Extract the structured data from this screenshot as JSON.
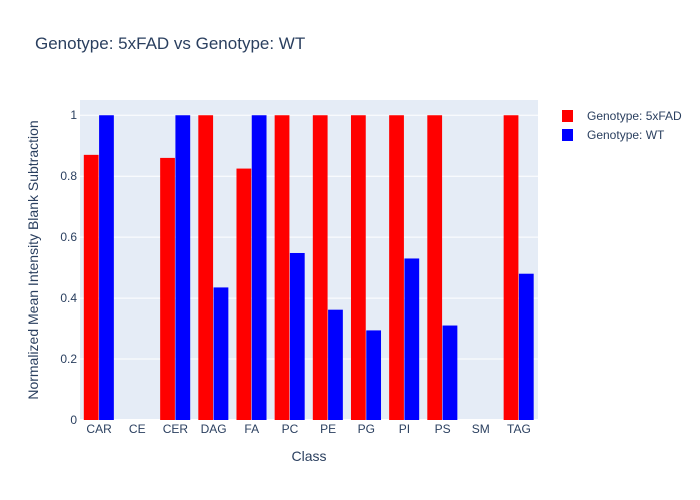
{
  "chart_data": {
    "type": "bar",
    "title": "Genotype: 5xFAD vs Genotype: WT",
    "xlabel": "Class",
    "ylabel": "Normalized Mean Intensity Blank Subtraction",
    "categories": [
      "CAR",
      "CE",
      "CER",
      "DAG",
      "FA",
      "PC",
      "PE",
      "PG",
      "PI",
      "PS",
      "SM",
      "TAG"
    ],
    "series": [
      {
        "name": "Genotype: 5xFAD",
        "color": "#ff0000",
        "values": [
          0.87,
          0,
          0.86,
          1,
          0.825,
          1,
          1,
          1,
          1,
          1,
          0,
          1
        ]
      },
      {
        "name": "Genotype: WT",
        "color": "#0000ff",
        "values": [
          1,
          0,
          1,
          0.435,
          1,
          0.548,
          0.362,
          0.294,
          0.53,
          0.31,
          0,
          0.48
        ]
      }
    ],
    "yticks": [
      "0",
      "0.2",
      "0.4",
      "0.6",
      "0.8",
      "1"
    ],
    "ylim": [
      0,
      1.05
    ],
    "grid": true,
    "legend_position": "top-right",
    "plot_background": "#e5ecf6"
  }
}
